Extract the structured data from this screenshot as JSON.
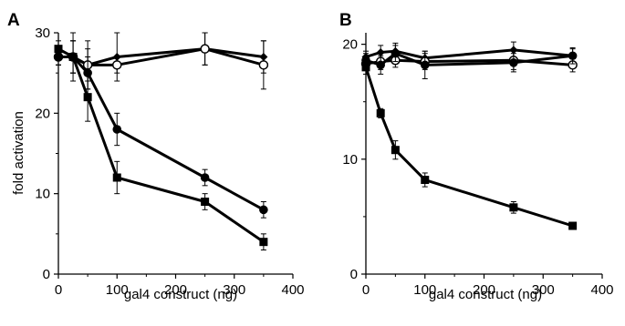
{
  "chart_data": [
    {
      "type": "line",
      "panel_label": "A",
      "xlabel": "gal4 construct (ng)",
      "ylabel": "fold activation",
      "xlim": [
        0,
        400
      ],
      "ylim": [
        0,
        30
      ],
      "xticks": [
        0,
        100,
        200,
        300,
        400
      ],
      "yticks": [
        0,
        10,
        20,
        30
      ],
      "x": [
        0,
        25,
        50,
        100,
        250,
        350
      ],
      "series": [
        {
          "marker": "diamond",
          "values": [
            27,
            27,
            26,
            27,
            28,
            27
          ],
          "errors": [
            1,
            3,
            3,
            3,
            2,
            2
          ]
        },
        {
          "marker": "open-circle",
          "values": [
            27,
            27,
            26,
            26,
            28,
            26
          ],
          "errors": [
            1,
            2,
            2,
            1,
            2,
            3
          ]
        },
        {
          "marker": "filled-circle",
          "values": [
            27,
            27,
            25,
            18,
            12,
            8
          ],
          "errors": [
            1,
            2,
            2,
            2,
            1,
            1
          ]
        },
        {
          "marker": "square",
          "values": [
            28,
            27,
            22,
            12,
            9,
            4
          ],
          "errors": [
            1,
            2,
            3,
            2,
            1,
            1
          ]
        }
      ]
    },
    {
      "type": "line",
      "panel_label": "B",
      "xlabel": "gal4 construct (ng)",
      "ylabel": "",
      "xlim": [
        0,
        400
      ],
      "ylim": [
        0,
        21
      ],
      "xticks": [
        0,
        100,
        200,
        300,
        400
      ],
      "yticks": [
        0,
        10,
        20
      ],
      "x": [
        0,
        25,
        50,
        100,
        250,
        350
      ],
      "series": [
        {
          "marker": "diamond",
          "values": [
            18.9,
            19.3,
            19.4,
            18.8,
            19.5,
            19.0
          ],
          "errors": [
            0.5,
            0.6,
            0.7,
            0.6,
            0.7,
            0.6
          ]
        },
        {
          "marker": "open-circle",
          "values": [
            18.3,
            18.5,
            18.6,
            18.5,
            18.6,
            18.2
          ],
          "errors": [
            0.5,
            0.7,
            0.6,
            0.7,
            0.8,
            0.6
          ]
        },
        {
          "marker": "filled-circle",
          "values": [
            18.6,
            18.2,
            19.2,
            18.2,
            18.4,
            19.0
          ],
          "errors": [
            0.6,
            0.8,
            0.7,
            1.2,
            0.8,
            0.7
          ]
        },
        {
          "marker": "square",
          "values": [
            18.0,
            14.0,
            10.8,
            8.2,
            5.8,
            4.2
          ],
          "errors": [
            0.6,
            0.4,
            0.8,
            0.6,
            0.5,
            0.3
          ]
        }
      ]
    }
  ]
}
